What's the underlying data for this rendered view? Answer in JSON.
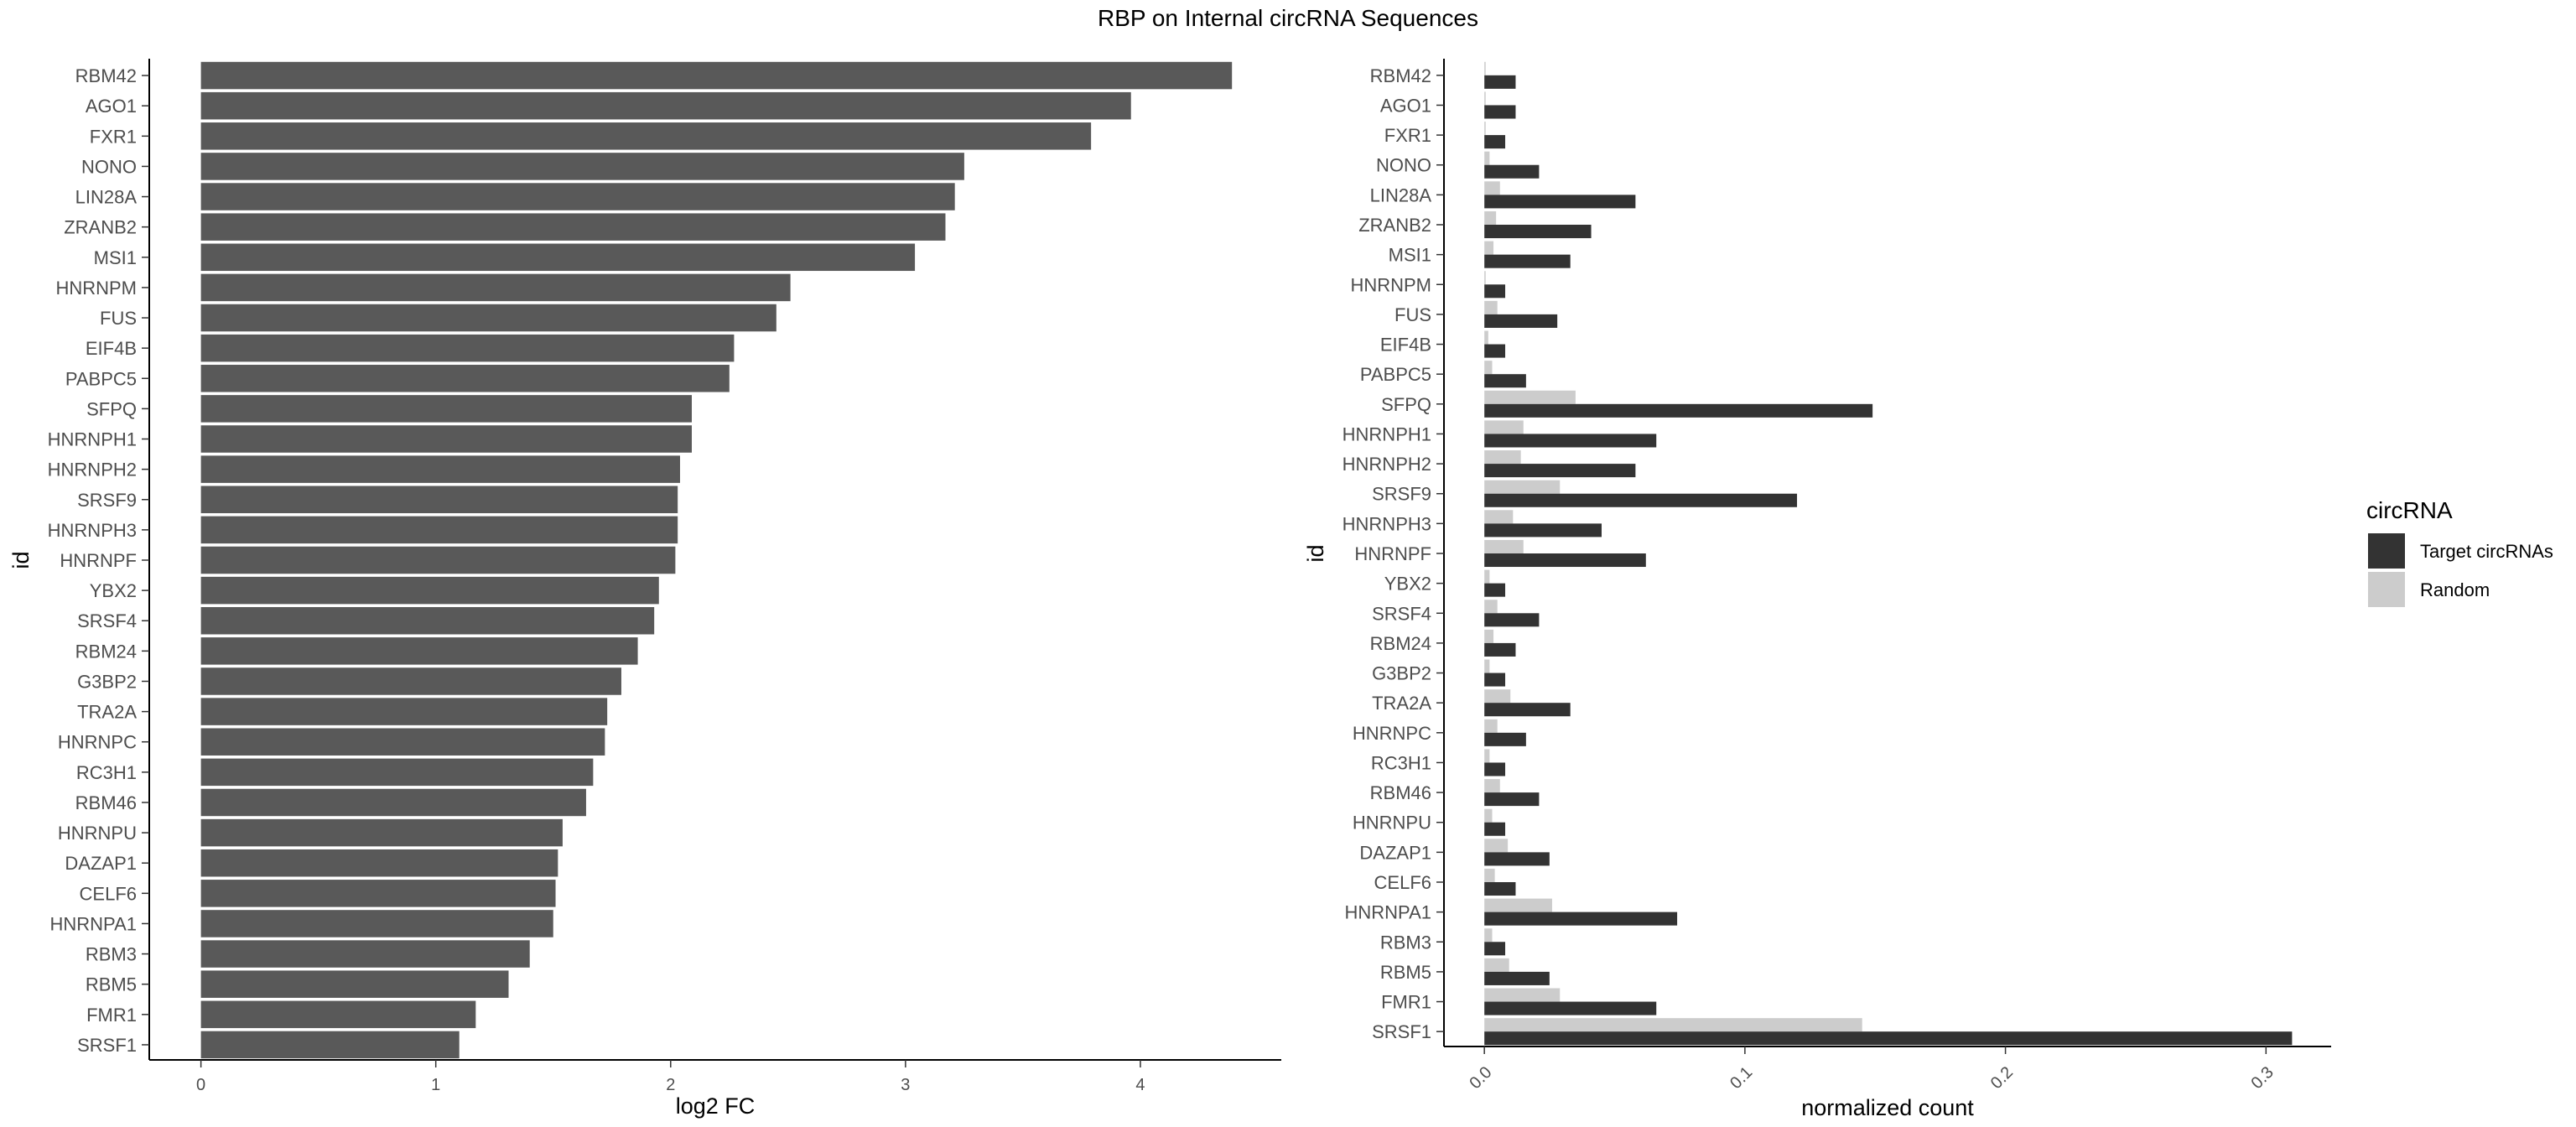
{
  "title": "RBP on Internal circRNA Sequences",
  "chart_data": [
    {
      "type": "bar",
      "orientation": "horizontal",
      "categories": [
        "RBM42",
        "AGO1",
        "FXR1",
        "NONO",
        "LIN28A",
        "ZRANB2",
        "MSI1",
        "HNRNPM",
        "FUS",
        "EIF4B",
        "PABPC5",
        "SFPQ",
        "HNRNPH1",
        "HNRNPH2",
        "SRSF9",
        "HNRNPH3",
        "HNRNPF",
        "YBX2",
        "SRSF4",
        "RBM24",
        "G3BP2",
        "TRA2A",
        "HNRNPC",
        "RC3H1",
        "RBM46",
        "HNRNPU",
        "DAZAP1",
        "CELF6",
        "HNRNPA1",
        "RBM3",
        "RBM5",
        "FMR1",
        "SRSF1"
      ],
      "values": [
        4.39,
        3.96,
        3.79,
        3.25,
        3.21,
        3.17,
        3.04,
        2.51,
        2.45,
        2.27,
        2.25,
        2.09,
        2.09,
        2.04,
        2.03,
        2.03,
        2.02,
        1.95,
        1.93,
        1.86,
        1.79,
        1.73,
        1.72,
        1.67,
        1.64,
        1.54,
        1.52,
        1.51,
        1.5,
        1.4,
        1.31,
        1.17,
        1.1
      ],
      "bar_color": "#595959",
      "xlabel": "log2 FC",
      "ylabel": "id",
      "xlim": [
        -0.22,
        4.6
      ],
      "xticks": [
        0,
        1,
        2,
        3,
        4
      ],
      "xtick_labels": [
        "0",
        "1",
        "2",
        "3",
        "4"
      ],
      "grid": false
    },
    {
      "type": "bar",
      "orientation": "horizontal",
      "grouped": true,
      "categories": [
        "RBM42",
        "AGO1",
        "FXR1",
        "NONO",
        "LIN28A",
        "ZRANB2",
        "MSI1",
        "HNRNPM",
        "FUS",
        "EIF4B",
        "PABPC5",
        "SFPQ",
        "HNRNPH1",
        "HNRNPH2",
        "SRSF9",
        "HNRNPH3",
        "HNRNPF",
        "YBX2",
        "SRSF4",
        "RBM24",
        "G3BP2",
        "TRA2A",
        "HNRNPC",
        "RC3H1",
        "RBM46",
        "HNRNPU",
        "DAZAP1",
        "CELF6",
        "HNRNPA1",
        "RBM3",
        "RBM5",
        "FMR1",
        "SRSF1"
      ],
      "series": [
        {
          "name": "Random",
          "color": "#cccccc",
          "values": [
            0.0005,
            0.0005,
            0.0005,
            0.002,
            0.006,
            0.0045,
            0.0035,
            0.0005,
            0.005,
            0.0015,
            0.003,
            0.035,
            0.015,
            0.014,
            0.029,
            0.011,
            0.015,
            0.002,
            0.005,
            0.0035,
            0.002,
            0.01,
            0.005,
            0.002,
            0.006,
            0.003,
            0.009,
            0.004,
            0.026,
            0.003,
            0.0095,
            0.029,
            0.145
          ]
        },
        {
          "name": "Target circRNAs",
          "color": "#333333",
          "values": [
            0.012,
            0.012,
            0.008,
            0.021,
            0.058,
            0.041,
            0.033,
            0.008,
            0.028,
            0.008,
            0.016,
            0.149,
            0.066,
            0.058,
            0.12,
            0.045,
            0.062,
            0.008,
            0.021,
            0.012,
            0.008,
            0.033,
            0.016,
            0.008,
            0.021,
            0.008,
            0.025,
            0.012,
            0.074,
            0.008,
            0.025,
            0.066,
            0.31
          ]
        }
      ],
      "xlabel": "normalized count",
      "ylabel": "id",
      "xlim": [
        -0.0155,
        0.325
      ],
      "xticks": [
        0,
        0.1,
        0.2,
        0.3
      ],
      "xtick_labels": [
        "0.0",
        "0.1",
        "0.2",
        "0.3"
      ],
      "grid": false,
      "legend": {
        "title": "circRNA",
        "position": "right",
        "entries": [
          {
            "label": "Target circRNAs",
            "color": "#333333"
          },
          {
            "label": "Random",
            "color": "#cccccc"
          }
        ]
      }
    }
  ]
}
